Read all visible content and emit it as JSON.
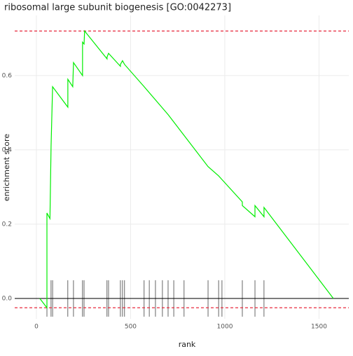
{
  "chart_data": {
    "type": "line",
    "title": "ribosomal large subunit biogenesis [GO:0042273]",
    "x_label": "rank",
    "y_label": "enrichment score",
    "xlim": [
      -115,
      1658
    ],
    "ylim": [
      -0.055,
      0.762
    ],
    "xticks": [
      0,
      500,
      1000,
      1500
    ],
    "yticks": [
      {
        "value": 0,
        "label": "0.0"
      },
      0.2,
      0.4,
      0.6
    ],
    "grid": true,
    "hlines": [
      0.72,
      -0.025
    ],
    "hline_color": "#e8283c",
    "series": [
      {
        "color": "#00ee00",
        "x": [
          18,
          56,
          56,
          72,
          78,
          86,
          167,
          167,
          193,
          197,
          245,
          245,
          253,
          256,
          375,
          375,
          383,
          446,
          446,
          457,
          468,
          572,
          699,
          911,
          967,
          985,
          1093,
          1093,
          1160,
          1160,
          1208,
          1208,
          1576
        ],
        "values": [
          0,
          -0.025,
          0.23,
          0.215,
          0.41,
          0.57,
          0.515,
          0.59,
          0.57,
          0.635,
          0.6,
          0.69,
          0.685,
          0.72,
          0.645,
          0.65,
          0.66,
          0.625,
          0.63,
          0.64,
          0.63,
          0.57,
          0.495,
          0.355,
          0.33,
          0.32,
          0.26,
          0.25,
          0.22,
          0.25,
          0.22,
          0.245,
          0
        ]
      }
    ],
    "hits": [
      56,
      78,
      86,
      167,
      197,
      245,
      253,
      375,
      383,
      446,
      457,
      468,
      572,
      599,
      632,
      669,
      699,
      729,
      784,
      911,
      967,
      985,
      1093,
      1160,
      1208
    ]
  }
}
